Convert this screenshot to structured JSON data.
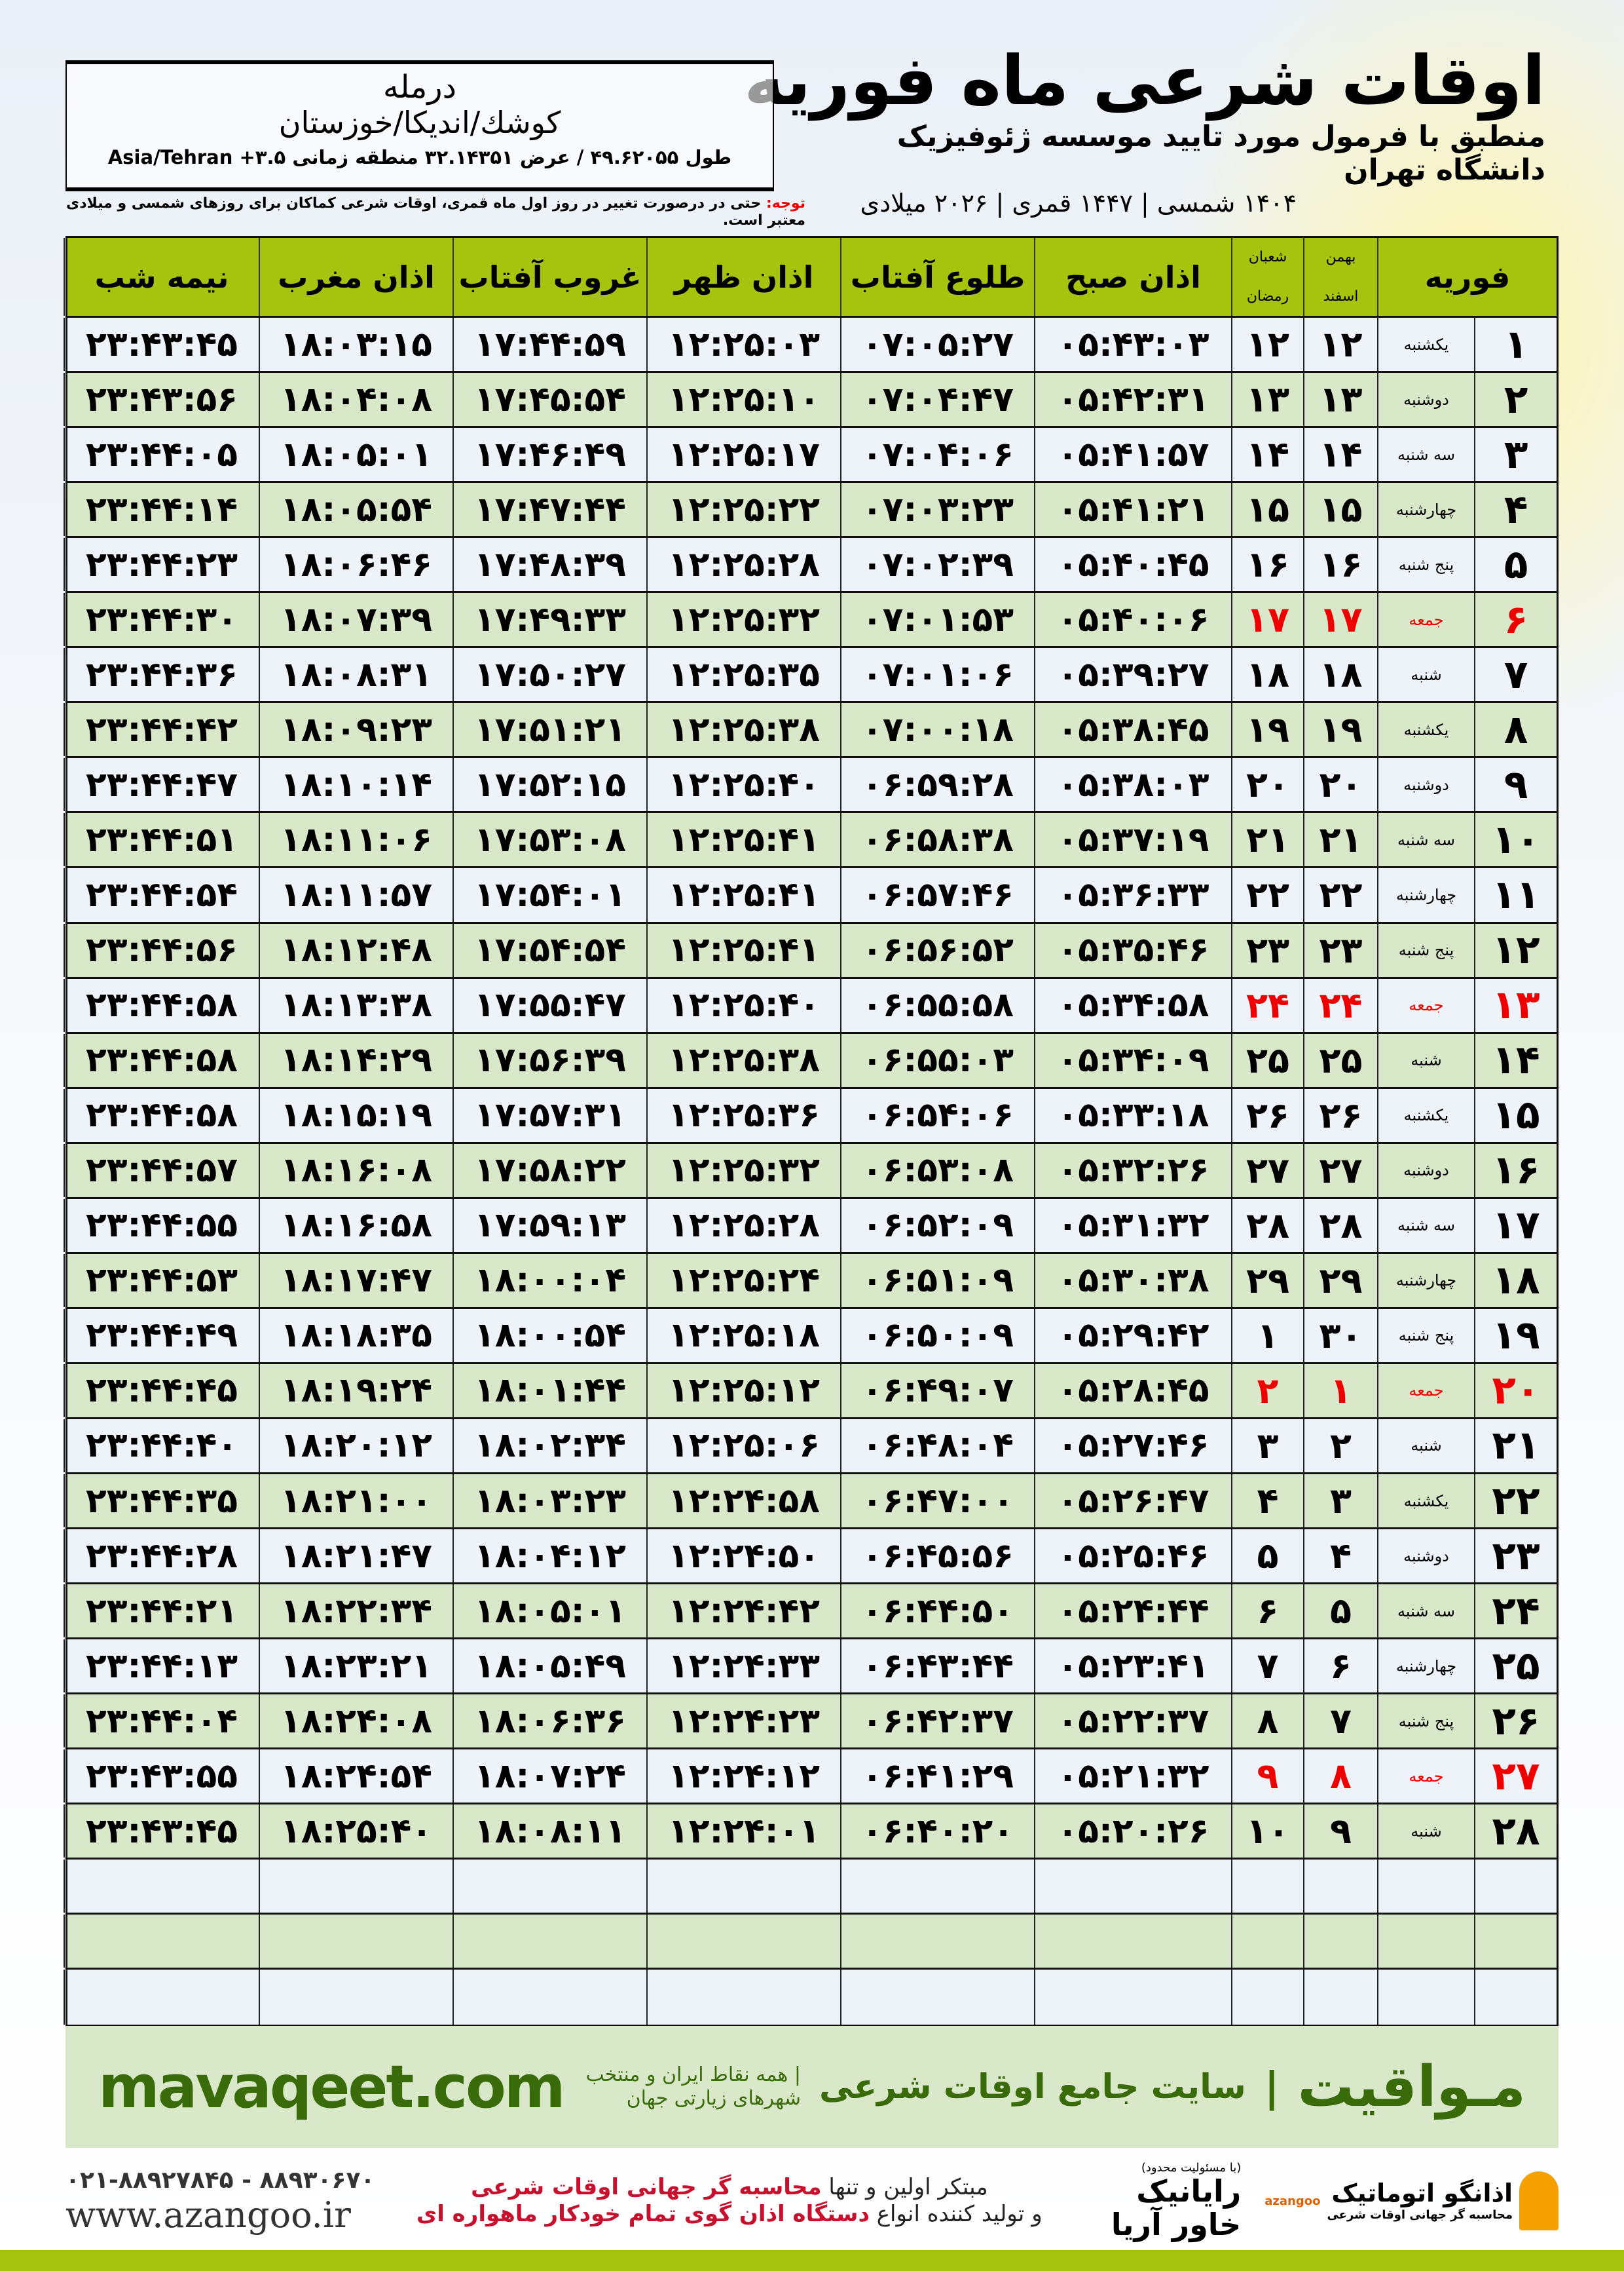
{
  "header": {
    "title": "اوقات شرعی ماه فوریه",
    "subtitle": "منطبق با فرمول مورد تایید موسسه ژئوفیزیک دانشگاه تهران",
    "dateline": "۱۴۰۴ شمسی | ۱۴۴۷ قمری | ۲۰۲۶ میلادی"
  },
  "location": {
    "city": "درمله",
    "region": "کوشك/اندیکا/خوزستان",
    "coords": "طول ۴۹.۶۲۰۵۵ / عرض ۳۲.۱۴۳۵۱ منطقه زمانی ۳.۵+ Asia/Tehran"
  },
  "note": {
    "label": "توجه:",
    "text": " حتی در درصورت تغییر در روز اول ماه قمری، اوقات شرعی کماکان برای روزهای شمسی و میلادی معتبر است."
  },
  "table": {
    "headers": {
      "month": "فوریه",
      "shamsi_top": "بهمن",
      "shamsi_bottom": "اسفند",
      "hijri_top": "شعبان",
      "hijri_bottom": "رمضان",
      "sobh": "اذان صبح",
      "tolu": "طلوع آفتاب",
      "zohr": "اذان ظهر",
      "ghoroob": "غروب آفتاب",
      "maghreb": "اذان مغرب",
      "nimeh": "نیمه شب"
    },
    "friday_color": "#e00000",
    "rows": [
      [
        "۱",
        "یکشنبه",
        "۱۲",
        "۱۲",
        "۰۵:۴۳:۰۳",
        "۰۷:۰۵:۲۷",
        "۱۲:۲۵:۰۳",
        "۱۷:۴۴:۵۹",
        "۱۸:۰۳:۱۵",
        "۲۳:۴۳:۴۵"
      ],
      [
        "۲",
        "دوشنبه",
        "۱۳",
        "۱۳",
        "۰۵:۴۲:۳۱",
        "۰۷:۰۴:۴۷",
        "۱۲:۲۵:۱۰",
        "۱۷:۴۵:۵۴",
        "۱۸:۰۴:۰۸",
        "۲۳:۴۳:۵۶"
      ],
      [
        "۳",
        "سه شنبه",
        "۱۴",
        "۱۴",
        "۰۵:۴۱:۵۷",
        "۰۷:۰۴:۰۶",
        "۱۲:۲۵:۱۷",
        "۱۷:۴۶:۴۹",
        "۱۸:۰۵:۰۱",
        "۲۳:۴۴:۰۵"
      ],
      [
        "۴",
        "چهارشنبه",
        "۱۵",
        "۱۵",
        "۰۵:۴۱:۲۱",
        "۰۷:۰۳:۲۳",
        "۱۲:۲۵:۲۲",
        "۱۷:۴۷:۴۴",
        "۱۸:۰۵:۵۴",
        "۲۳:۴۴:۱۴"
      ],
      [
        "۵",
        "پنج شنبه",
        "۱۶",
        "۱۶",
        "۰۵:۴۰:۴۵",
        "۰۷:۰۲:۳۹",
        "۱۲:۲۵:۲۸",
        "۱۷:۴۸:۳۹",
        "۱۸:۰۶:۴۶",
        "۲۳:۴۴:۲۳"
      ],
      [
        "۶",
        "جمعه",
        "۱۷",
        "۱۷",
        "۰۵:۴۰:۰۶",
        "۰۷:۰۱:۵۳",
        "۱۲:۲۵:۳۲",
        "۱۷:۴۹:۳۳",
        "۱۸:۰۷:۳۹",
        "۲۳:۴۴:۳۰"
      ],
      [
        "۷",
        "شنبه",
        "۱۸",
        "۱۸",
        "۰۵:۳۹:۲۷",
        "۰۷:۰۱:۰۶",
        "۱۲:۲۵:۳۵",
        "۱۷:۵۰:۲۷",
        "۱۸:۰۸:۳۱",
        "۲۳:۴۴:۳۶"
      ],
      [
        "۸",
        "یکشنبه",
        "۱۹",
        "۱۹",
        "۰۵:۳۸:۴۵",
        "۰۷:۰۰:۱۸",
        "۱۲:۲۵:۳۸",
        "۱۷:۵۱:۲۱",
        "۱۸:۰۹:۲۳",
        "۲۳:۴۴:۴۲"
      ],
      [
        "۹",
        "دوشنبه",
        "۲۰",
        "۲۰",
        "۰۵:۳۸:۰۳",
        "۰۶:۵۹:۲۸",
        "۱۲:۲۵:۴۰",
        "۱۷:۵۲:۱۵",
        "۱۸:۱۰:۱۴",
        "۲۳:۴۴:۴۷"
      ],
      [
        "۱۰",
        "سه شنبه",
        "۲۱",
        "۲۱",
        "۰۵:۳۷:۱۹",
        "۰۶:۵۸:۳۸",
        "۱۲:۲۵:۴۱",
        "۱۷:۵۳:۰۸",
        "۱۸:۱۱:۰۶",
        "۲۳:۴۴:۵۱"
      ],
      [
        "۱۱",
        "چهارشنبه",
        "۲۲",
        "۲۲",
        "۰۵:۳۶:۳۳",
        "۰۶:۵۷:۴۶",
        "۱۲:۲۵:۴۱",
        "۱۷:۵۴:۰۱",
        "۱۸:۱۱:۵۷",
        "۲۳:۴۴:۵۴"
      ],
      [
        "۱۲",
        "پنج شنبه",
        "۲۳",
        "۲۳",
        "۰۵:۳۵:۴۶",
        "۰۶:۵۶:۵۲",
        "۱۲:۲۵:۴۱",
        "۱۷:۵۴:۵۴",
        "۱۸:۱۲:۴۸",
        "۲۳:۴۴:۵۶"
      ],
      [
        "۱۳",
        "جمعه",
        "۲۴",
        "۲۴",
        "۰۵:۳۴:۵۸",
        "۰۶:۵۵:۵۸",
        "۱۲:۲۵:۴۰",
        "۱۷:۵۵:۴۷",
        "۱۸:۱۳:۳۸",
        "۲۳:۴۴:۵۸"
      ],
      [
        "۱۴",
        "شنبه",
        "۲۵",
        "۲۵",
        "۰۵:۳۴:۰۹",
        "۰۶:۵۵:۰۳",
        "۱۲:۲۵:۳۸",
        "۱۷:۵۶:۳۹",
        "۱۸:۱۴:۲۹",
        "۲۳:۴۴:۵۸"
      ],
      [
        "۱۵",
        "یکشنبه",
        "۲۶",
        "۲۶",
        "۰۵:۳۳:۱۸",
        "۰۶:۵۴:۰۶",
        "۱۲:۲۵:۳۶",
        "۱۷:۵۷:۳۱",
        "۱۸:۱۵:۱۹",
        "۲۳:۴۴:۵۸"
      ],
      [
        "۱۶",
        "دوشنبه",
        "۲۷",
        "۲۷",
        "۰۵:۳۲:۲۶",
        "۰۶:۵۳:۰۸",
        "۱۲:۲۵:۳۲",
        "۱۷:۵۸:۲۲",
        "۱۸:۱۶:۰۸",
        "۲۳:۴۴:۵۷"
      ],
      [
        "۱۷",
        "سه شنبه",
        "۲۸",
        "۲۸",
        "۰۵:۳۱:۳۲",
        "۰۶:۵۲:۰۹",
        "۱۲:۲۵:۲۸",
        "۱۷:۵۹:۱۳",
        "۱۸:۱۶:۵۸",
        "۲۳:۴۴:۵۵"
      ],
      [
        "۱۸",
        "چهارشنبه",
        "۲۹",
        "۲۹",
        "۰۵:۳۰:۳۸",
        "۰۶:۵۱:۰۹",
        "۱۲:۲۵:۲۴",
        "۱۸:۰۰:۰۴",
        "۱۸:۱۷:۴۷",
        "۲۳:۴۴:۵۳"
      ],
      [
        "۱۹",
        "پنج شنبه",
        "۳۰",
        "۱",
        "۰۵:۲۹:۴۲",
        "۰۶:۵۰:۰۹",
        "۱۲:۲۵:۱۸",
        "۱۸:۰۰:۵۴",
        "۱۸:۱۸:۳۵",
        "۲۳:۴۴:۴۹"
      ],
      [
        "۲۰",
        "جمعه",
        "۱",
        "۲",
        "۰۵:۲۸:۴۵",
        "۰۶:۴۹:۰۷",
        "۱۲:۲۵:۱۲",
        "۱۸:۰۱:۴۴",
        "۱۸:۱۹:۲۴",
        "۲۳:۴۴:۴۵"
      ],
      [
        "۲۱",
        "شنبه",
        "۲",
        "۳",
        "۰۵:۲۷:۴۶",
        "۰۶:۴۸:۰۴",
        "۱۲:۲۵:۰۶",
        "۱۸:۰۲:۳۴",
        "۱۸:۲۰:۱۲",
        "۲۳:۴۴:۴۰"
      ],
      [
        "۲۲",
        "یکشنبه",
        "۳",
        "۴",
        "۰۵:۲۶:۴۷",
        "۰۶:۴۷:۰۰",
        "۱۲:۲۴:۵۸",
        "۱۸:۰۳:۲۳",
        "۱۸:۲۱:۰۰",
        "۲۳:۴۴:۳۵"
      ],
      [
        "۲۳",
        "دوشنبه",
        "۴",
        "۵",
        "۰۵:۲۵:۴۶",
        "۰۶:۴۵:۵۶",
        "۱۲:۲۴:۵۰",
        "۱۸:۰۴:۱۲",
        "۱۸:۲۱:۴۷",
        "۲۳:۴۴:۲۸"
      ],
      [
        "۲۴",
        "سه شنبه",
        "۵",
        "۶",
        "۰۵:۲۴:۴۴",
        "۰۶:۴۴:۵۰",
        "۱۲:۲۴:۴۲",
        "۱۸:۰۵:۰۱",
        "۱۸:۲۲:۳۴",
        "۲۳:۴۴:۲۱"
      ],
      [
        "۲۵",
        "چهارشنبه",
        "۶",
        "۷",
        "۰۵:۲۳:۴۱",
        "۰۶:۴۳:۴۴",
        "۱۲:۲۴:۳۳",
        "۱۸:۰۵:۴۹",
        "۱۸:۲۳:۲۱",
        "۲۳:۴۴:۱۳"
      ],
      [
        "۲۶",
        "پنج شنبه",
        "۷",
        "۸",
        "۰۵:۲۲:۳۷",
        "۰۶:۴۲:۳۷",
        "۱۲:۲۴:۲۳",
        "۱۸:۰۶:۳۶",
        "۱۸:۲۴:۰۸",
        "۲۳:۴۴:۰۴"
      ],
      [
        "۲۷",
        "جمعه",
        "۸",
        "۹",
        "۰۵:۲۱:۳۲",
        "۰۶:۴۱:۲۹",
        "۱۲:۲۴:۱۲",
        "۱۸:۰۷:۲۴",
        "۱۸:۲۴:۵۴",
        "۲۳:۴۳:۵۵"
      ],
      [
        "۲۸",
        "شنبه",
        "۹",
        "۱۰",
        "۰۵:۲۰:۲۶",
        "۰۶:۴۰:۲۰",
        "۱۲:۲۴:۰۱",
        "۱۸:۰۸:۱۱",
        "۱۸:۲۵:۴۰",
        "۲۳:۴۳:۴۵"
      ]
    ]
  },
  "promo": {
    "brand": "مـواقیت",
    "separator": "|",
    "tagline": "سایت جامع اوقات شرعی",
    "sub": "| همه نقاط ایران و منتخب شهرهای زیارتی جهان",
    "url": "mavaqeet.com"
  },
  "footer": {
    "phones": "۰۲۱-۸۸۹۲۷۸۴۵ - ۸۸۹۳۰۶۷۰",
    "site": "www.azangoo.ir",
    "ad_line1_a": "مبتکر اولین و تنها ",
    "ad_line1_b": "محاسبه گر جهانی اوقات شرعی",
    "ad_line2_a": "و تولید کننده انواع ",
    "ad_line2_b": "دستگاه اذان گوی تمام خودکار ماهواره ای",
    "logo1_small": "(با مسئولیت محدود)",
    "logo1": "رایانیک خاور آریا",
    "logo2": "اذانگو اتوماتیک",
    "logo2_small": "محاسبه گر جهانی اوقات شرعی",
    "logo2_en": "azangoo"
  }
}
